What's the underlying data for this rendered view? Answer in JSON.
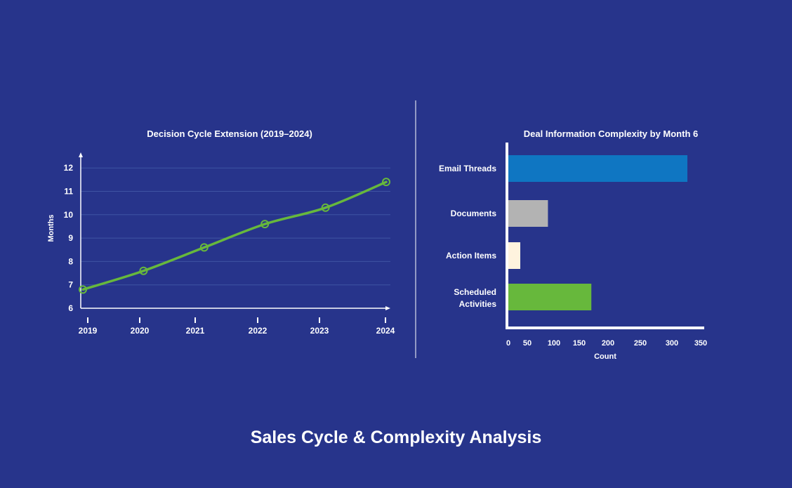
{
  "page": {
    "background": "#27348b",
    "title": "Sales Cycle & Complexity Analysis"
  },
  "chart_data": [
    {
      "type": "line",
      "title": "Decision Cycle Extension (2019–2024)",
      "xlabel": "",
      "ylabel": "Months",
      "x": [
        "2019",
        "2020",
        "2021",
        "2022",
        "2023",
        "2024"
      ],
      "series": [
        {
          "values": [
            6.8,
            7.6,
            8.6,
            9.6,
            10.3,
            11.4
          ]
        }
      ],
      "yticks": [
        6,
        7,
        8,
        9,
        10,
        11,
        12
      ],
      "ylim": [
        5.9,
        12.6
      ],
      "grid": true,
      "line_color": "#67b83c"
    },
    {
      "type": "bar",
      "orientation": "horizontal",
      "title": "Deal Information Complexity by Month 6",
      "xlabel": "Count",
      "ylabel": "",
      "categories": [
        "Email Threads",
        "Documents",
        "Action Items",
        "Scheduled Activities"
      ],
      "values": [
        330,
        73,
        22,
        153
      ],
      "colors": [
        "#0f76c2",
        "#b3b3b3",
        "#fef3de",
        "#67b83c"
      ],
      "xticks": [
        0,
        50,
        100,
        150,
        200,
        250,
        300,
        350
      ],
      "xlim": [
        0,
        365
      ]
    }
  ]
}
